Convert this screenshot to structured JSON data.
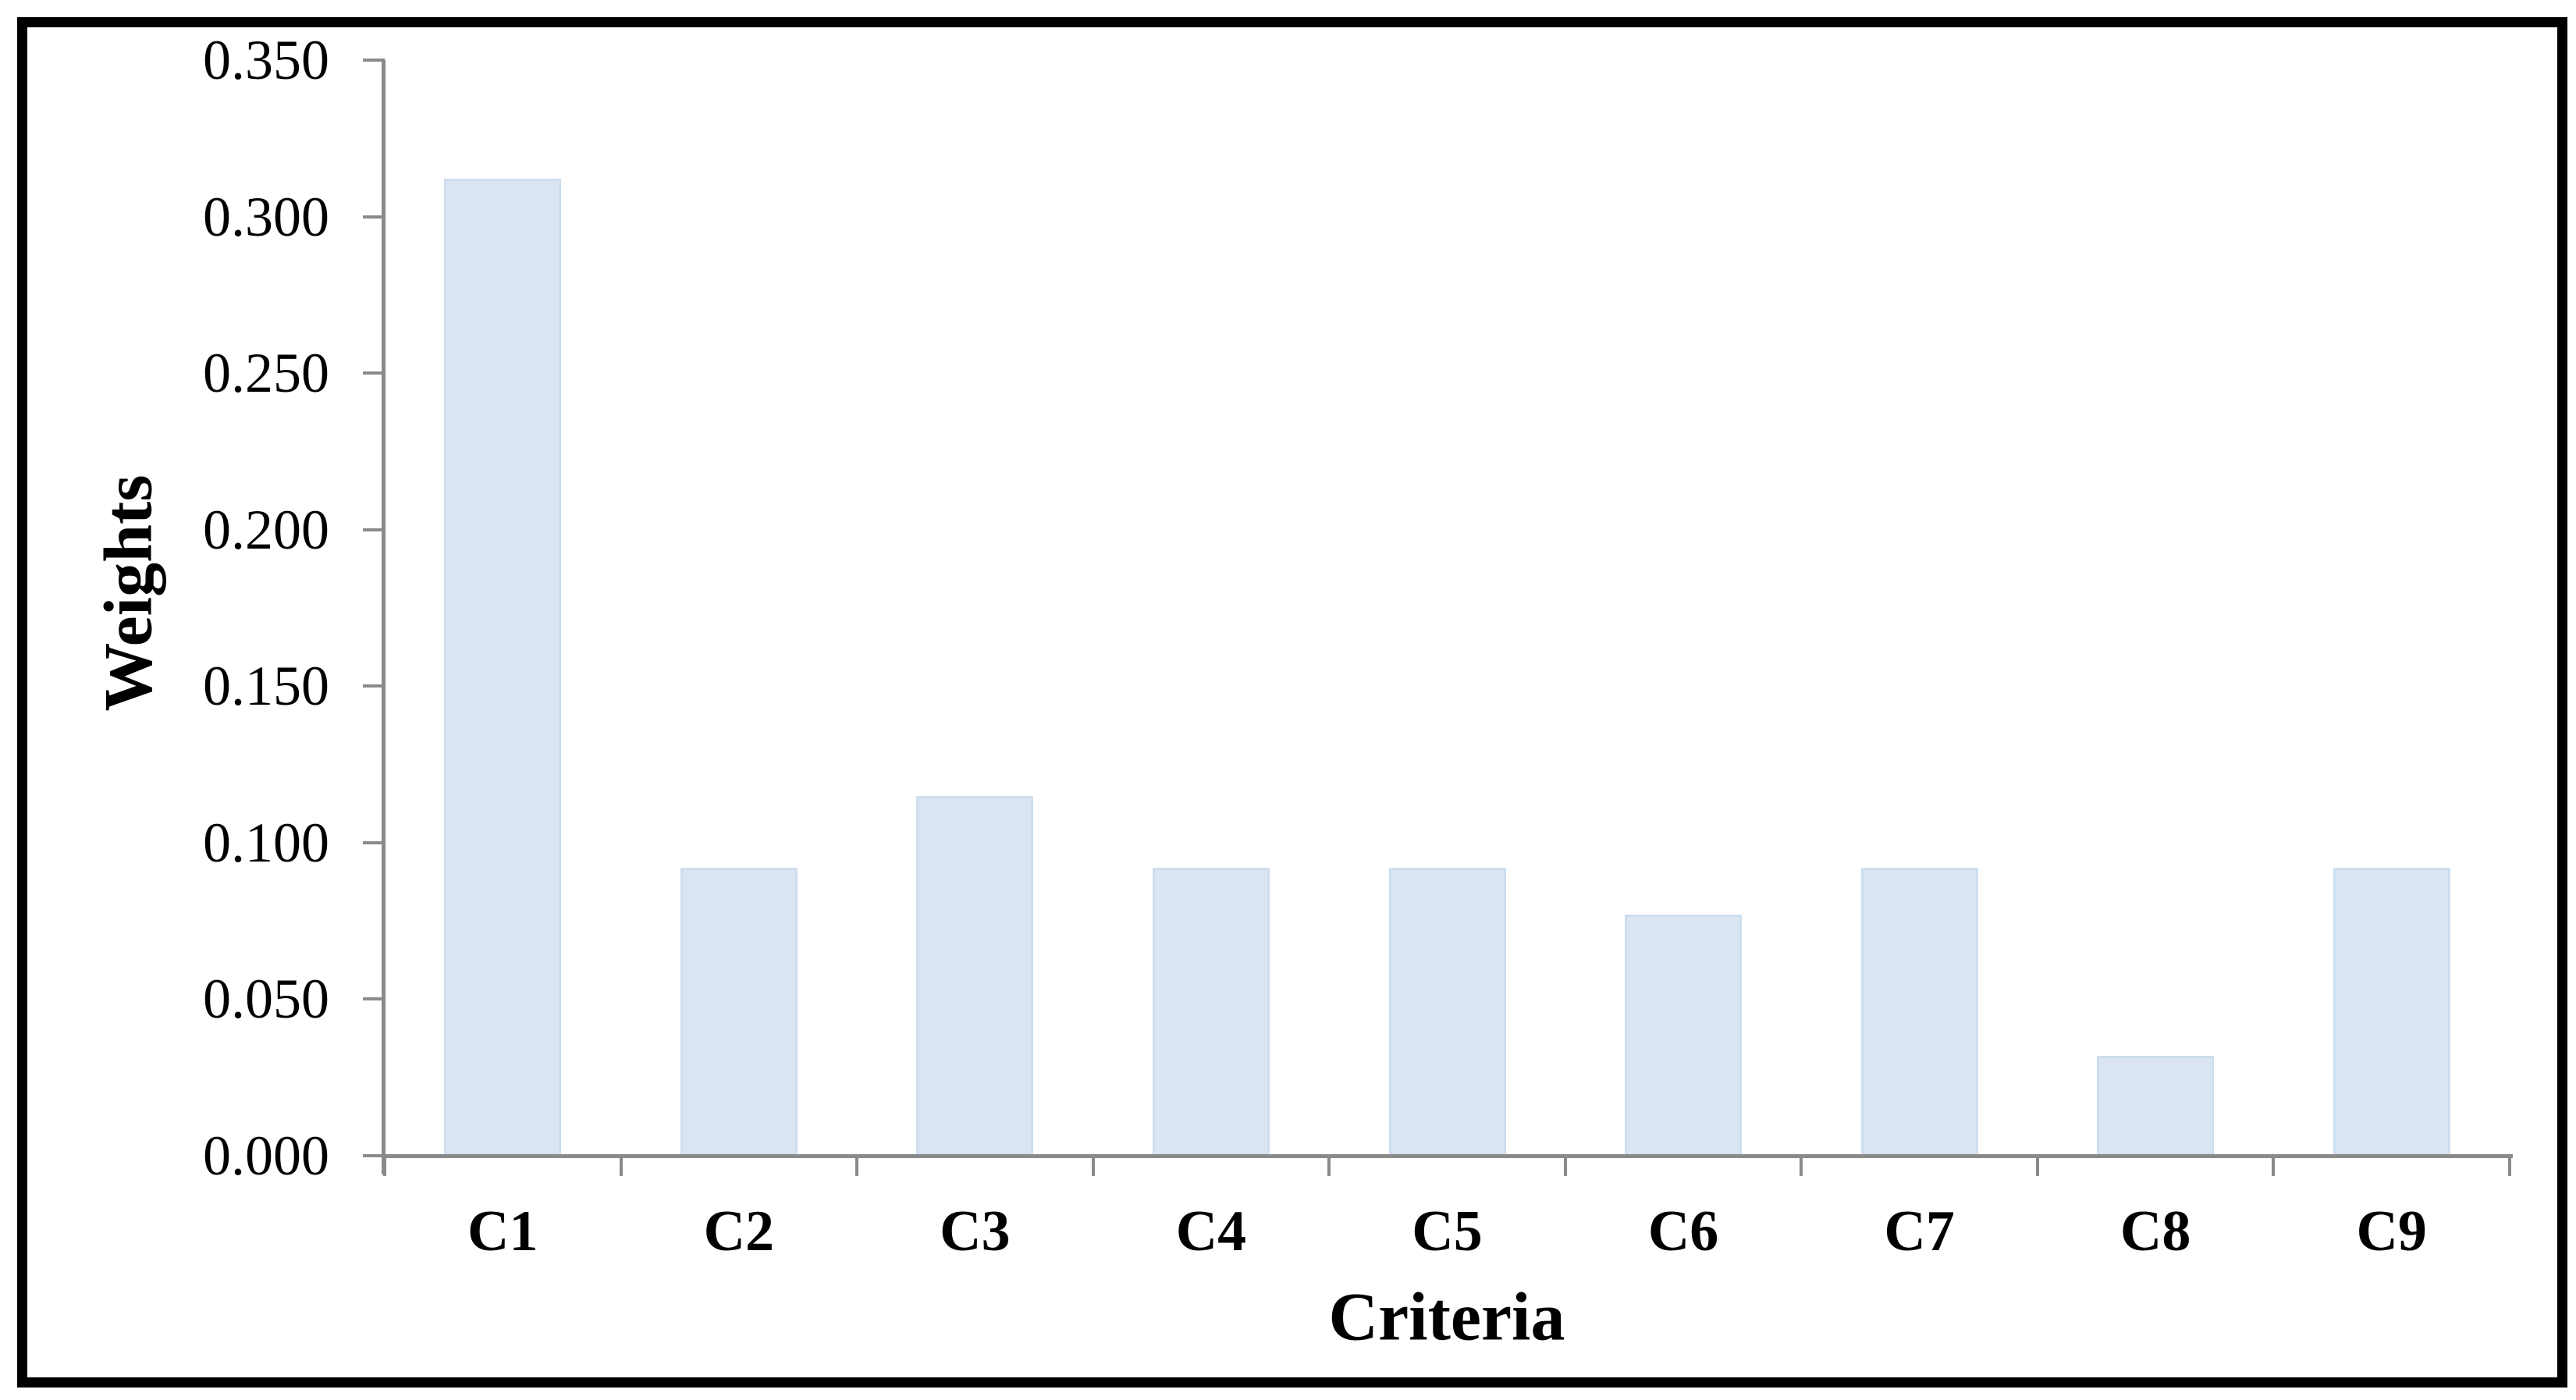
{
  "chart_data": {
    "type": "bar",
    "title": "",
    "categories": [
      "C1",
      "C2",
      "C3",
      "C4",
      "C5",
      "C6",
      "C7",
      "C8",
      "C9"
    ],
    "values": [
      0.312,
      0.092,
      0.115,
      0.092,
      0.092,
      0.077,
      0.092,
      0.032,
      0.092
    ],
    "xlabel": "Criteria",
    "ylabel": "Weights",
    "ylim": [
      0,
      0.35
    ],
    "ytick_step": 0.05,
    "ytick_labels": [
      "0.000",
      "0.050",
      "0.100",
      "0.150",
      "0.200",
      "0.250",
      "0.300",
      "0.350"
    ],
    "grid": false,
    "legend_position": "none",
    "bar_fill_color": "#dbe5f1",
    "bar_border_color": "#cddeee",
    "axis_color": "#8a8a8a",
    "text_color": "#000000",
    "frame_border_color": "#000000"
  }
}
